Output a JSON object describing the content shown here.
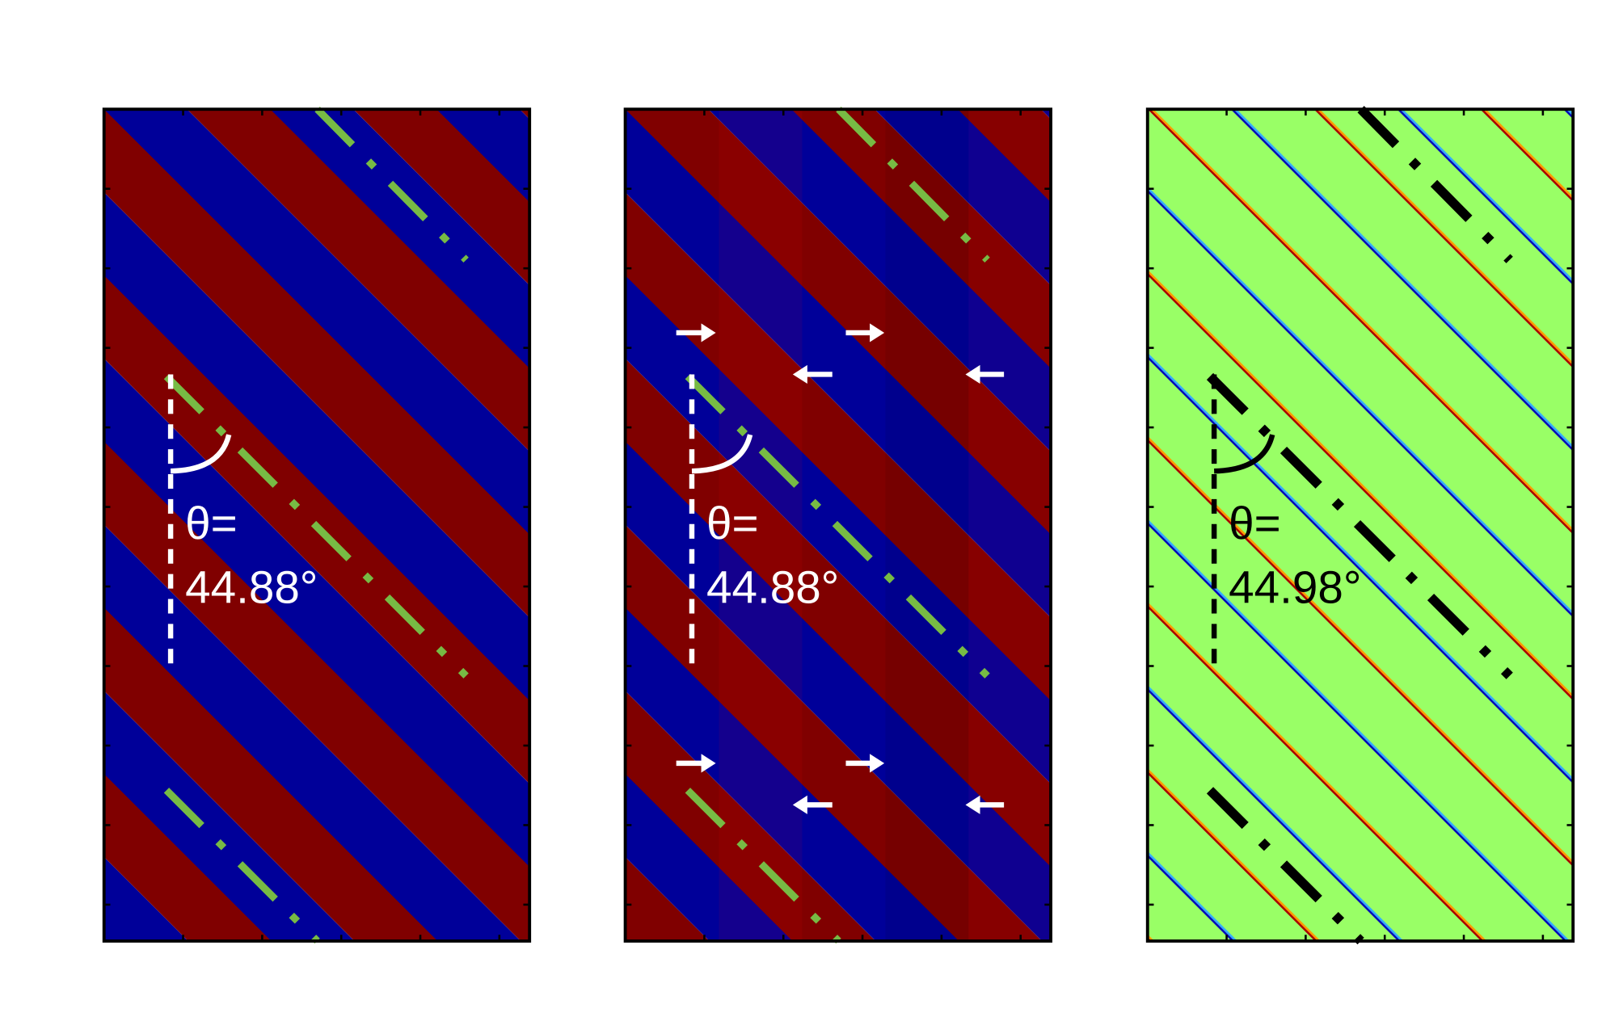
{
  "panels": [
    {
      "theta_label": "θ=",
      "angle": "44.88°"
    },
    {
      "theta_label": "θ=",
      "angle": "44.88°"
    },
    {
      "theta_label": "θ=",
      "angle": "44.98°"
    }
  ]
}
